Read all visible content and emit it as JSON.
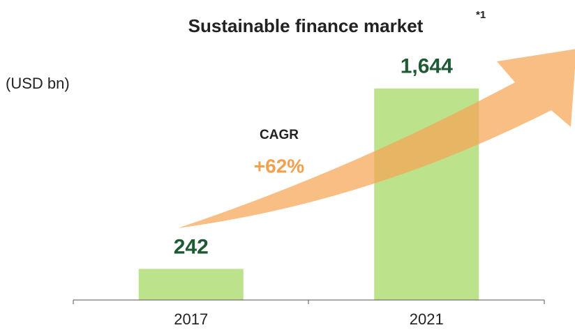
{
  "chart_data": {
    "type": "bar",
    "title": "Sustainable finance market",
    "title_note": "*1",
    "y_label": "(USD bn)",
    "categories": [
      "2017",
      "2021"
    ],
    "values": [
      242,
      1644
    ],
    "value_labels": [
      "242",
      "1,644"
    ],
    "color": "#bce28c",
    "label_color": "#1e5a34",
    "ylim": [
      0,
      1800
    ],
    "annotation": {
      "label": "CAGR",
      "value": "+62%",
      "color": "#f3a04e"
    }
  }
}
